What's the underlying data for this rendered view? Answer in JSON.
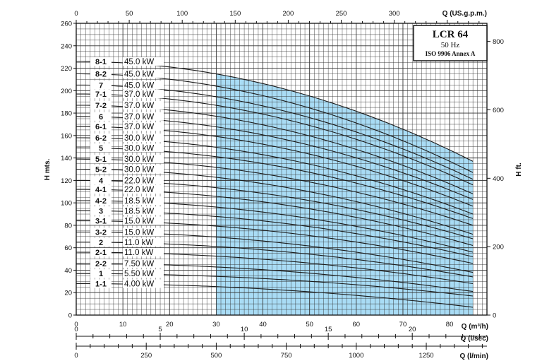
{
  "chart_data": {
    "type": "line",
    "title": "LCR 64",
    "subtitle": "50 Hz",
    "annotation": "ISO 9906 Annex A",
    "ylabel_left": "H mts.",
    "ylabel_right": "H ft.",
    "xlabel_m3h": "Q (m³/h)",
    "xlabel_usgpm": "Q (US.g.p.m.)",
    "xlabel_lsec": "Q (l/sec)",
    "xlabel_lmin": "Q (l/min)",
    "y_ticks": [
      0,
      20,
      40,
      60,
      80,
      100,
      120,
      140,
      160,
      180,
      200,
      220,
      240,
      260
    ],
    "ylim": [
      0,
      260
    ],
    "xlim": [
      0,
      88
    ],
    "x_ticks_m3h": [
      0,
      10,
      20,
      30,
      40,
      50,
      60,
      70,
      80
    ],
    "x_ticks_usgpm": [
      0,
      50,
      100,
      150,
      200,
      250,
      300
    ],
    "x_ticks_lsec": [
      0,
      5,
      10,
      15,
      20
    ],
    "x_ticks_lmin": [
      0,
      250,
      500,
      750,
      1000,
      1250
    ],
    "y_ticks_ft": [
      0,
      200,
      400,
      600,
      800
    ],
    "operating_range_m3h": [
      30,
      85
    ],
    "series": [
      {
        "name": "8-1",
        "power": "45.0 kW",
        "h0": 226,
        "h85": 137
      },
      {
        "name": "8-2",
        "power": "45.0 kW",
        "h0": 215,
        "h85": 127
      },
      {
        "name": "7",
        "power": "45.0 kW",
        "h0": 205,
        "h85": 121
      },
      {
        "name": "7-1",
        "power": "37.0 kW",
        "h0": 197,
        "h85": 116
      },
      {
        "name": "7-2",
        "power": "37.0 kW",
        "h0": 187,
        "h85": 108
      },
      {
        "name": "6",
        "power": "37.0 kW",
        "h0": 177,
        "h85": 103
      },
      {
        "name": "6-1",
        "power": "37.0 kW",
        "h0": 168,
        "h85": 97
      },
      {
        "name": "6-2",
        "power": "30.0 kW",
        "h0": 158,
        "h85": 90
      },
      {
        "name": "5",
        "power": "30.0 kW",
        "h0": 149,
        "h85": 86
      },
      {
        "name": "5-1",
        "power": "30.0 kW",
        "h0": 139,
        "h85": 80
      },
      {
        "name": "5-2",
        "power": "30.0 kW",
        "h0": 130,
        "h85": 72
      },
      {
        "name": "4",
        "power": "22.0 kW",
        "h0": 120,
        "h85": 68
      },
      {
        "name": "4-1",
        "power": "22.0 kW",
        "h0": 112,
        "h85": 62
      },
      {
        "name": "4-2",
        "power": "18.5 kW",
        "h0": 102,
        "h85": 56
      },
      {
        "name": "3",
        "power": "18.5 kW",
        "h0": 93,
        "h85": 52
      },
      {
        "name": "3-1",
        "power": "15.0 kW",
        "h0": 84,
        "h85": 46
      },
      {
        "name": "3-2",
        "power": "15.0 kW",
        "h0": 74,
        "h85": 38
      },
      {
        "name": "2",
        "power": "11.0 kW",
        "h0": 65,
        "h85": 34
      },
      {
        "name": "2-1",
        "power": "11.0 kW",
        "h0": 56,
        "h85": 28
      },
      {
        "name": "2-2",
        "power": "7.50 kW",
        "h0": 46,
        "h85": 21
      },
      {
        "name": "1",
        "power": "5.50 kW",
        "h0": 37,
        "h85": 17
      },
      {
        "name": "1-1",
        "power": "4.00 kW",
        "h0": 28,
        "h85": 7
      }
    ]
  },
  "colors": {
    "fill": "#a9dcf5",
    "grid": "#333333",
    "curve": "#1a1a1a"
  }
}
